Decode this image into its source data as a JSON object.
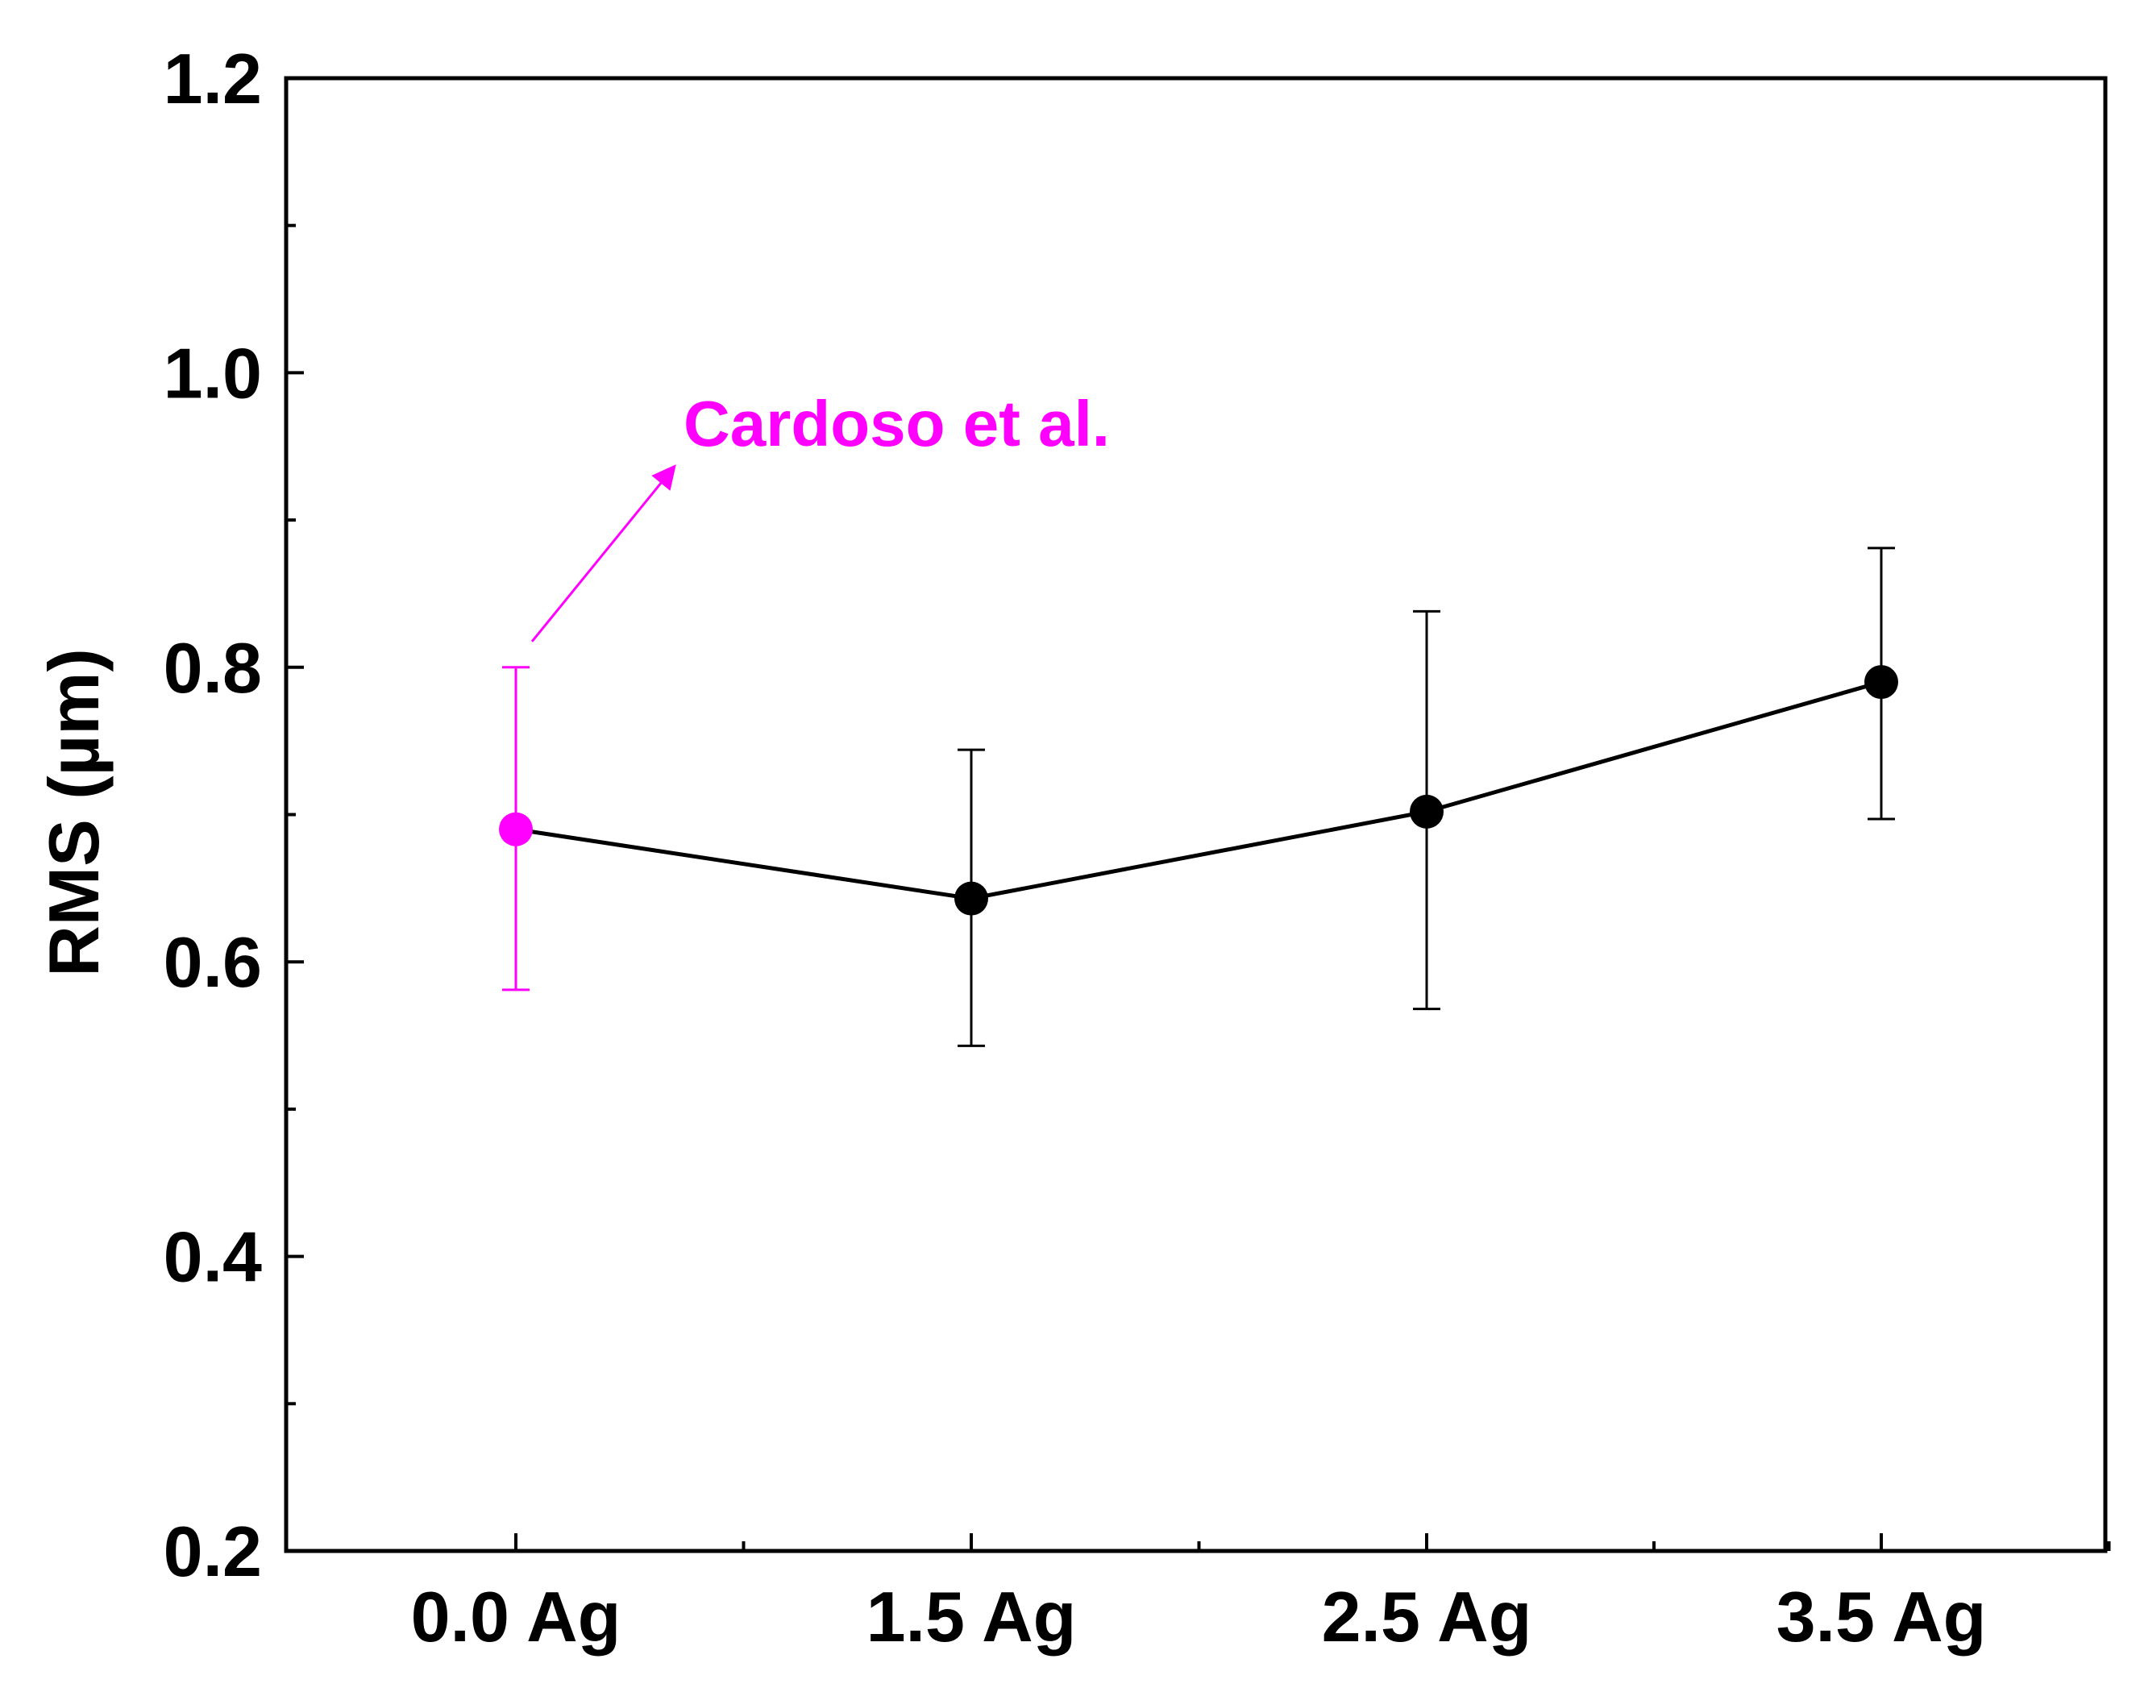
{
  "chart_data": {
    "type": "line",
    "title": "",
    "xlabel": "",
    "ylabel": "RMS (µm)",
    "categories": [
      "0.0 Ag",
      "1.5 Ag",
      "2.5 Ag",
      "3.5 Ag"
    ],
    "ylim": [
      0.2,
      1.2
    ],
    "yticks": [
      {
        "value": 0.2,
        "label": "0.2"
      },
      {
        "value": 0.4,
        "label": "0.4"
      },
      {
        "value": 0.6,
        "label": "0.6"
      },
      {
        "value": 0.8,
        "label": "0.8"
      },
      {
        "value": 1.0,
        "label": "1.0"
      },
      {
        "value": 1.2,
        "label": "1.2"
      }
    ],
    "yminor_ticks": [
      0.3,
      0.5,
      0.7,
      0.9,
      1.1
    ],
    "grid": false,
    "series": [
      {
        "name": "RMS",
        "values": [
          0.69,
          0.643,
          0.702,
          0.79
        ],
        "error_low": [
          0.581,
          0.543,
          0.568,
          0.697
        ],
        "error_high": [
          0.8,
          0.744,
          0.838,
          0.881
        ],
        "color": "#000000",
        "highlight": {
          "index": 0,
          "color": "#ff00ff"
        }
      }
    ],
    "annotations": [
      {
        "text": "Cardoso et al.",
        "target_index": 0,
        "color": "#ff00ff"
      }
    ]
  }
}
